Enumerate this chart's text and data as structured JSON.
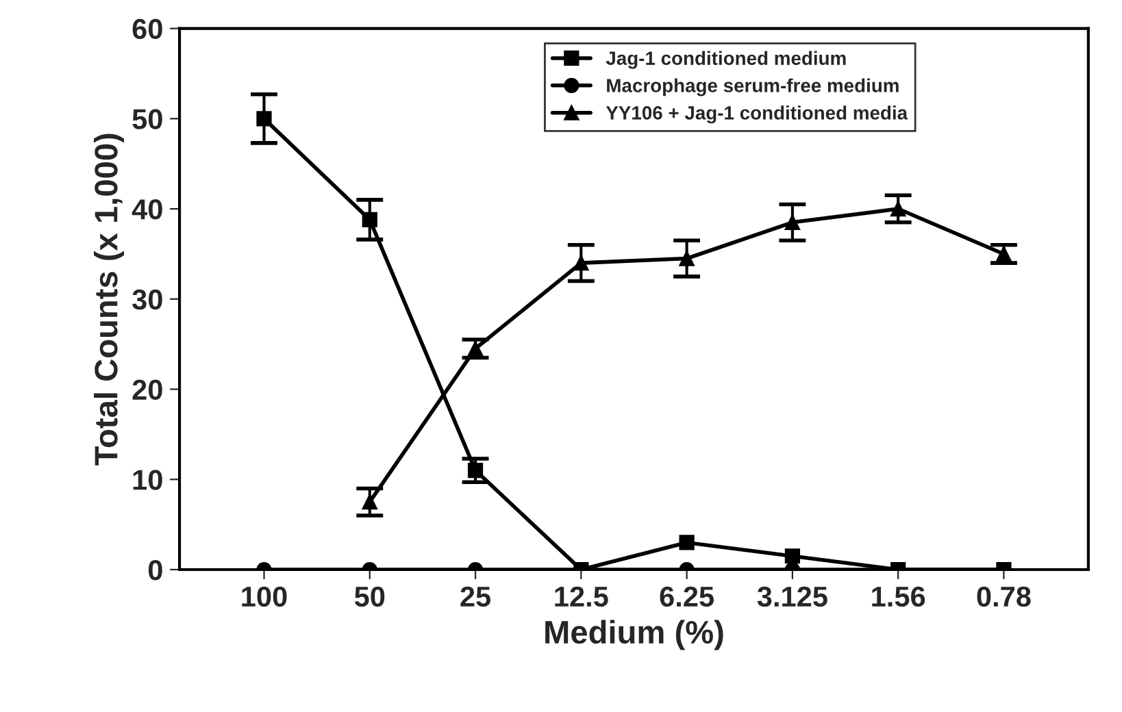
{
  "chart_data": {
    "type": "line",
    "xlabel": "Medium (%)",
    "ylabel": "Total Counts (x 1,000)",
    "categories": [
      "100",
      "50",
      "25",
      "12.5",
      "6.25",
      "3.125",
      "1.56",
      "0.78"
    ],
    "ylim": [
      0,
      60
    ],
    "yticks": [
      0,
      10,
      20,
      30,
      40,
      50,
      60
    ],
    "grid": false,
    "legend": "top right",
    "line_style": "solid",
    "series": [
      {
        "name": "Jag-1 conditioned medium",
        "color": "#000000",
        "marker": "square",
        "values": [
          50,
          38.8,
          11,
          0,
          3,
          1.5,
          0,
          0
        ],
        "errors": [
          2.7,
          2.2,
          1.3,
          null,
          null,
          null,
          null,
          null
        ]
      },
      {
        "name": "Macrophage serum-free medium",
        "color": "#000000",
        "marker": "circle",
        "values": [
          0,
          0,
          0,
          0,
          0,
          0,
          0,
          0
        ]
      },
      {
        "name": "YY106 + Jag-1 conditioned media",
        "color": "#000000",
        "marker": "triangle",
        "values": [
          null,
          7.5,
          24.5,
          34,
          34.5,
          38.5,
          40,
          35
        ],
        "errors": [
          null,
          1.5,
          1,
          2,
          2,
          2,
          1.5,
          1
        ]
      }
    ]
  }
}
